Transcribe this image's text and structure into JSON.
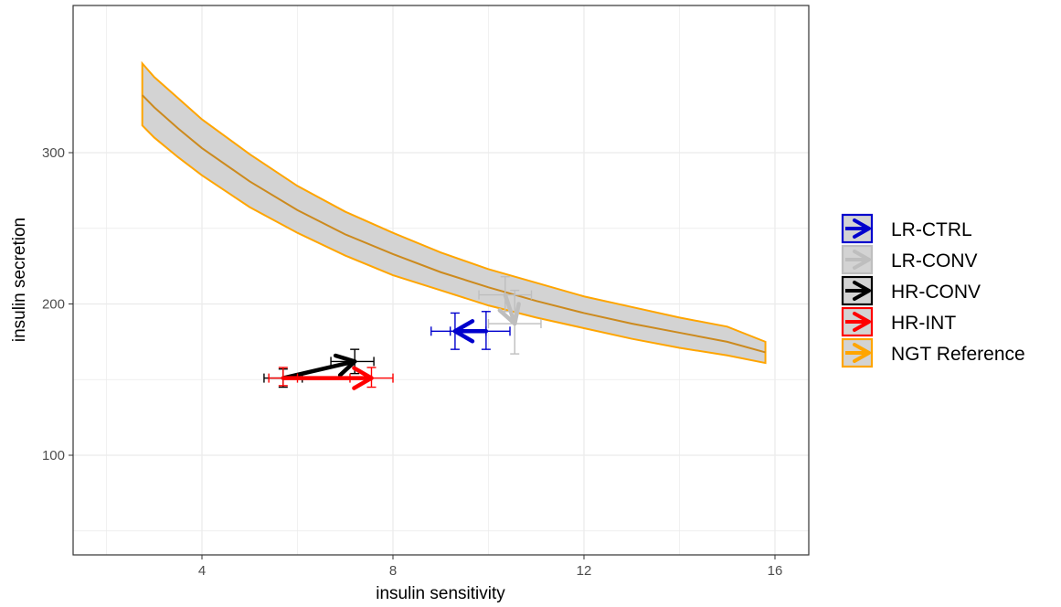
{
  "chart_data": {
    "type": "line",
    "xlabel": "insulin sensitivity",
    "ylabel": "insulin secretion",
    "xlim": [
      1.2,
      16.8
    ],
    "ylim": [
      40,
      500
    ],
    "x_ticks": [
      4,
      8,
      12,
      16
    ],
    "x_tick_labels": [
      "4",
      "8",
      "12",
      "16"
    ],
    "y_ticks": [
      100,
      200,
      300
    ],
    "y_tick_labels": [
      "100",
      "200",
      "300"
    ],
    "grid": true,
    "legend_position": "right",
    "reference_band": {
      "name": "NGT Reference",
      "color": "#FFA500",
      "fill": "#D3D3D3",
      "line_color": "#CC8A1E",
      "x": [
        2.75,
        3,
        3.5,
        4,
        5,
        6,
        7,
        8,
        9,
        10,
        11,
        12,
        13,
        14,
        15,
        15.8
      ],
      "center": [
        338,
        330,
        316,
        303,
        281,
        262,
        246,
        233,
        221,
        211,
        202,
        194,
        187,
        181,
        175,
        168
      ],
      "lower": [
        318,
        310,
        297,
        285,
        264,
        247,
        232,
        219,
        209,
        199,
        191,
        184,
        177,
        171,
        166,
        161
      ],
      "upper": [
        359,
        350,
        336,
        322,
        299,
        278,
        261,
        247,
        234,
        223,
        214,
        205,
        198,
        191,
        185,
        175
      ]
    },
    "series": [
      {
        "name": "LR-CTRL",
        "color": "#0000CD",
        "from": {
          "x": 9.95,
          "y": 182
        },
        "to": {
          "x": 9.3,
          "y": 182
        },
        "err_x": [
          [
            8.8,
            9.95
          ],
          [
            9.2,
            10.45
          ]
        ],
        "err_y": [
          [
            170,
            195
          ],
          [
            170,
            194
          ]
        ]
      },
      {
        "name": "LR-CONV",
        "color": "#BEBEBE",
        "from": {
          "x": 10.35,
          "y": 206
        },
        "to": {
          "x": 10.55,
          "y": 187
        },
        "err_x": [
          [
            9.8,
            10.9
          ],
          [
            10.0,
            11.1
          ]
        ],
        "err_y": [
          [
            195,
            218
          ],
          [
            167,
            209
          ]
        ]
      },
      {
        "name": "HR-CONV",
        "color": "#000000",
        "from": {
          "x": 5.7,
          "y": 151
        },
        "to": {
          "x": 7.2,
          "y": 162
        },
        "err_x": [
          [
            5.3,
            6.1
          ],
          [
            6.7,
            7.6
          ]
        ],
        "err_y": [
          [
            145,
            157
          ],
          [
            154,
            170
          ]
        ]
      },
      {
        "name": "HR-INT",
        "color": "#FF0000",
        "from": {
          "x": 5.7,
          "y": 151
        },
        "to": {
          "x": 7.55,
          "y": 151
        },
        "err_x": [
          [
            5.4,
            6.0
          ],
          [
            7.1,
            8.0
          ]
        ],
        "err_y": [
          [
            146,
            158
          ],
          [
            145,
            158
          ]
        ]
      }
    ],
    "legend": [
      "LR-CTRL",
      "LR-CONV",
      "HR-CONV",
      "HR-INT",
      "NGT Reference"
    ]
  }
}
